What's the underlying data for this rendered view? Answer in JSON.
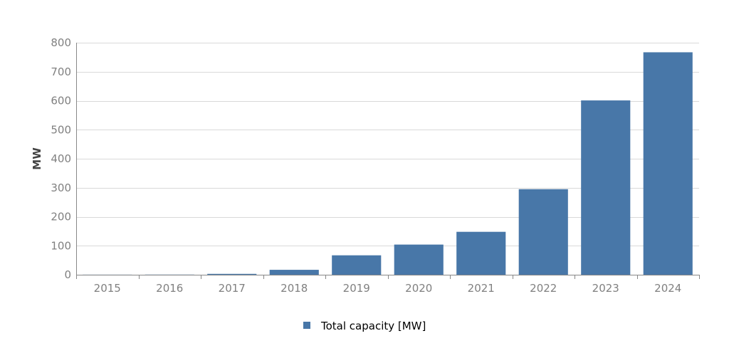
{
  "chart_data": {
    "type": "bar",
    "categories": [
      "2015",
      "2016",
      "2017",
      "2018",
      "2019",
      "2020",
      "2021",
      "2022",
      "2023",
      "2024"
    ],
    "series": [
      {
        "name": "Total capacity [MW]",
        "values": [
          0.3,
          0.5,
          3,
          17,
          67,
          104,
          148,
          295,
          601,
          767
        ],
        "color": "#4877a8"
      }
    ],
    "title": "",
    "xlabel": "",
    "ylabel": "MW",
    "ylim": [
      0,
      800
    ],
    "yticks": [
      0,
      100,
      200,
      300,
      400,
      500,
      600,
      700,
      800
    ],
    "ytick_labels": [
      "0",
      "100",
      "200",
      "300",
      "400",
      "500",
      "600",
      "700",
      "800"
    ],
    "grid": true,
    "legend_position": "bottom-center"
  }
}
